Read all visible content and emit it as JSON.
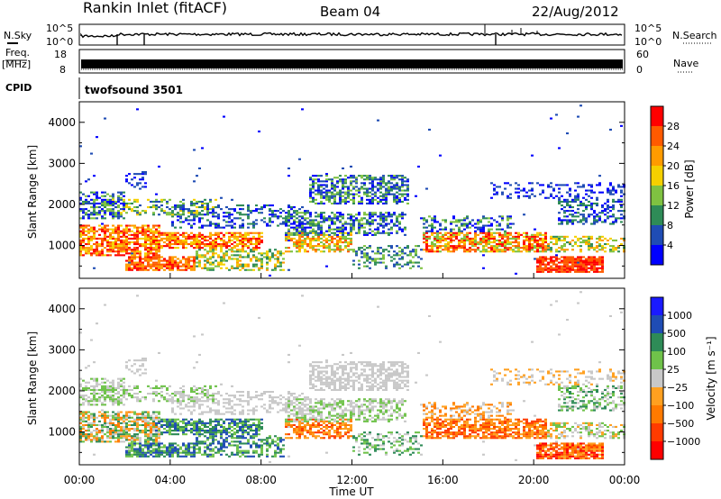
{
  "header": {
    "station": "Rankin Inlet (fitACF)",
    "beam": "Beam 04",
    "date": "22/Aug/2012"
  },
  "top_panels": {
    "nsky": {
      "label": "N.Sky",
      "tick_top": "10^5",
      "tick_bottom": "10^0"
    },
    "nsearch": {
      "label": "N.Search",
      "tick_top": "10^5",
      "tick_bottom": "10^0"
    },
    "freq": {
      "label_line1": "Freq.",
      "label_line2": "[MHz]",
      "tick_top": "18",
      "tick_bottom": "8"
    },
    "nave": {
      "label": "Nave",
      "tick_top": "60",
      "tick_bottom": "0"
    },
    "cpid": {
      "label": "CPID",
      "value": "twofsound 3501"
    }
  },
  "colors": {
    "power": [
      "#0000ff",
      "#1f4cb4",
      "#2e8b57",
      "#7fc241",
      "#f5d000",
      "#ff9b00",
      "#ff5a00",
      "#ff0000"
    ],
    "velocity": [
      "#ff0000",
      "#ff3b00",
      "#ff7a00",
      "#ffa020",
      "#c8c8c8",
      "#6fc24a",
      "#2e8b57",
      "#1f4cb4",
      "#1a1aff"
    ]
  },
  "chart_data": [
    {
      "type": "heatmap",
      "name": "power",
      "ylabel": "Slant Range [km]",
      "y_ticks": [
        "1000",
        "2000",
        "3000",
        "4000"
      ],
      "ylim": [
        200,
        4500
      ],
      "colorbar": {
        "label": "Power [dB]",
        "ticks": [
          "4",
          "8",
          "12",
          "16",
          "20",
          "24",
          "28"
        ]
      }
    },
    {
      "type": "heatmap",
      "name": "velocity",
      "ylabel": "Slant Range [km]",
      "y_ticks": [
        "1000",
        "2000",
        "3000",
        "4000"
      ],
      "ylim": [
        200,
        4500
      ],
      "colorbar": {
        "label": "Velocity [m s⁻¹]",
        "ticks": [
          "1000",
          "500",
          "100",
          "25",
          "−25",
          "−100",
          "−500",
          "−1000"
        ]
      }
    }
  ],
  "x_axis": {
    "label": "Time UT",
    "ticks": [
      "00:00",
      "04:00",
      "08:00",
      "12:00",
      "16:00",
      "20:00",
      "00:00"
    ]
  }
}
